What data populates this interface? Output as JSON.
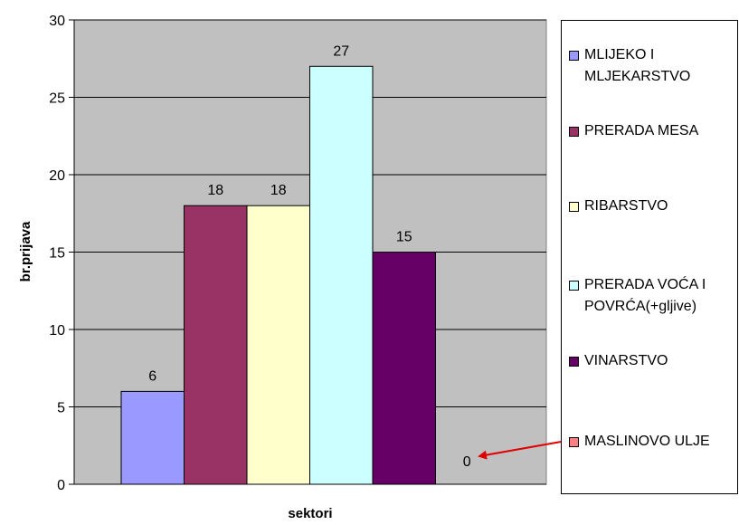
{
  "chart_data": {
    "type": "bar",
    "xlabel": "sektori",
    "ylabel": "br.prijava",
    "ylim": [
      0,
      30
    ],
    "yticks": [
      0,
      5,
      10,
      15,
      20,
      25,
      30
    ],
    "grid": true,
    "legend_position": "right",
    "plot_background": "#c0c0c0",
    "series": [
      {
        "name": "MLIJEKO I MLJEKARSTVO",
        "value": 6,
        "color": "#9999ff"
      },
      {
        "name": "PRERADA MESA",
        "value": 18,
        "color": "#993366"
      },
      {
        "name": "RIBARSTVO",
        "value": 18,
        "color": "#ffffcc"
      },
      {
        "name": "PRERADA VOĆA I POVRĆA(+gljive)",
        "value": 27,
        "color": "#ccffff"
      },
      {
        "name": "VINARSTVO",
        "value": 15,
        "color": "#660066"
      },
      {
        "name": "MASLINOVO ULJE",
        "value": 0,
        "color": "#ff8080"
      }
    ],
    "annotation": {
      "type": "arrow",
      "from": "legend:MASLINOVO ULJE",
      "to": "data-label:0",
      "color": "#ff0000"
    }
  }
}
